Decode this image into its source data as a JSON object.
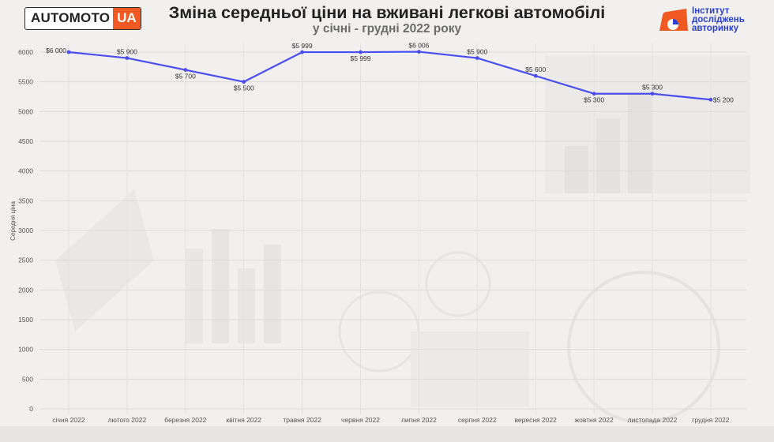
{
  "header": {
    "logo_main": "AUTOMOTO",
    "logo_ua": "UA",
    "title": "Зміна середньої ціни на вживані легкові автомобілі",
    "subtitle": "у січні - грудні 2022 року",
    "institute_line1": "Інститут",
    "institute_line2": "досліджень",
    "institute_line3": "авторинку"
  },
  "colors": {
    "line": "#4b4ef0",
    "accent": "#f05a22",
    "institute": "#2a3fd1"
  },
  "chart_data": {
    "type": "line",
    "title": "Зміна середньої ціни на вживані легкові автомобілі",
    "subtitle": "у січні - грудні 2022 року",
    "xlabel": "",
    "ylabel": "Середня ціна",
    "ylim": [
      0,
      6000
    ],
    "yticks": [
      "0",
      "500",
      "1000",
      "1500",
      "2000",
      "2500",
      "3000",
      "3500",
      "4000",
      "4500",
      "5000",
      "5500",
      "6000"
    ],
    "grid": true,
    "categories": [
      "січня 2022",
      "лютого 2022",
      "березня 2022",
      "квітня 2022",
      "травня 2022",
      "червня 2022",
      "липня 2022",
      "серпня 2022",
      "вересня 2022",
      "жовтня 2022",
      "листопада 2022",
      "грудня 2022"
    ],
    "series": [
      {
        "values": [
          6000,
          5900,
          5700,
          5500,
          5999,
          5999,
          6006,
          5900,
          5600,
          5300,
          5300,
          5200
        ],
        "labels": [
          "$6 000",
          "$5 900",
          "$5 700",
          "$5 500",
          "$5 999",
          "$5 999",
          "$6 006",
          "$5 900",
          "$5 600",
          "$5 300",
          "$5 300",
          "$5 200"
        ]
      }
    ]
  }
}
